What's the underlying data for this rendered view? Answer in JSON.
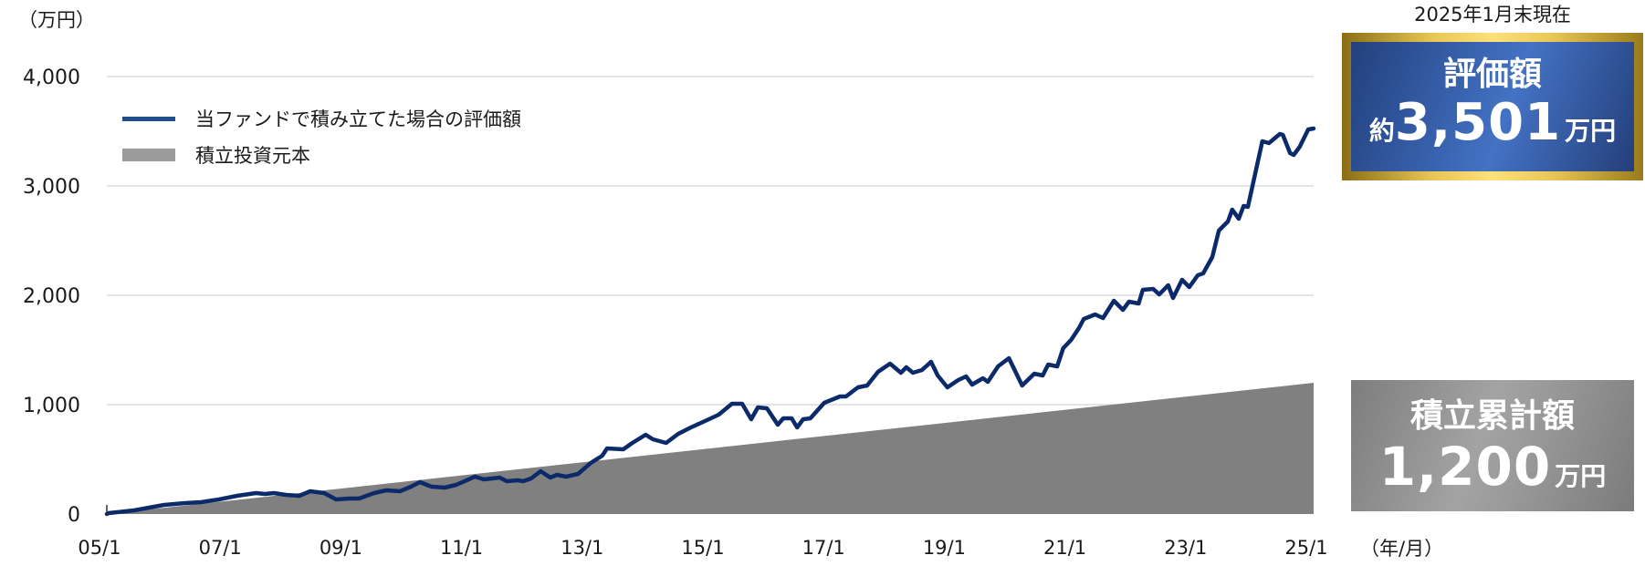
{
  "header": {
    "y_unit": "（万円）",
    "x_unit": "（年/月）"
  },
  "legend": {
    "items": [
      {
        "label": "当ファンドで積み立てた場合の評価額",
        "type": "line",
        "color": "#1f4e8c"
      },
      {
        "label": "積立投資元本",
        "type": "area",
        "color": "#9b9b9b"
      }
    ]
  },
  "summary": {
    "as_of": "2025年1月末現在",
    "evaluation": {
      "title": "評価額",
      "prefix": "約",
      "value": "3,501",
      "suffix": "万円"
    },
    "total_contribution": {
      "title": "積立累計額",
      "value": "1,200",
      "suffix": "万円"
    }
  },
  "colors": {
    "line": "#0b2a6a",
    "area": "#808080",
    "grid": "#dcdcdc",
    "eval_box": "#3d69b8",
    "gold_border": "#e8c656",
    "total_box": "#9a9a9a"
  },
  "chart_data": {
    "type": "line",
    "title": "",
    "xlabel": "（年/月）",
    "ylabel": "（万円）",
    "ylim": [
      0,
      4000
    ],
    "xlim": [
      2005,
      2025
    ],
    "grid": true,
    "legend_position": "upper-left",
    "y_ticks": [
      0,
      1000,
      2000,
      3000,
      4000
    ],
    "y_tick_labels": [
      "0",
      "1,000",
      "2,000",
      "3,000",
      "4,000"
    ],
    "x_ticks": [
      2005,
      2007,
      2009,
      2011,
      2013,
      2015,
      2017,
      2019,
      2021,
      2023,
      2025
    ],
    "x_tick_labels": [
      "05/1",
      "07/1",
      "09/1",
      "11/1",
      "13/1",
      "15/1",
      "17/1",
      "19/1",
      "21/1",
      "23/1",
      "25/1"
    ],
    "series": [
      {
        "name": "当ファンドで積み立てた場合の評価額",
        "type": "line",
        "points": [
          [
            2005.0,
            0
          ],
          [
            2005.03,
            8
          ],
          [
            2005.45,
            33
          ],
          [
            2005.95,
            83
          ],
          [
            2006.3,
            100
          ],
          [
            2006.56,
            108
          ],
          [
            2006.86,
            133
          ],
          [
            2007.16,
            167
          ],
          [
            2007.47,
            192
          ],
          [
            2007.62,
            183
          ],
          [
            2007.77,
            192
          ],
          [
            2007.97,
            175
          ],
          [
            2008.19,
            167
          ],
          [
            2008.37,
            208
          ],
          [
            2008.6,
            192
          ],
          [
            2008.8,
            133
          ],
          [
            2009.02,
            142
          ],
          [
            2009.18,
            142
          ],
          [
            2009.43,
            192
          ],
          [
            2009.63,
            217
          ],
          [
            2009.86,
            208
          ],
          [
            2010.04,
            250
          ],
          [
            2010.19,
            292
          ],
          [
            2010.34,
            258
          ],
          [
            2010.39,
            250
          ],
          [
            2010.6,
            242
          ],
          [
            2010.79,
            267
          ],
          [
            2011.1,
            342
          ],
          [
            2011.25,
            317
          ],
          [
            2011.51,
            333
          ],
          [
            2011.63,
            300
          ],
          [
            2011.81,
            308
          ],
          [
            2011.9,
            300
          ],
          [
            2012.03,
            325
          ],
          [
            2012.19,
            392
          ],
          [
            2012.35,
            333
          ],
          [
            2012.46,
            358
          ],
          [
            2012.61,
            342
          ],
          [
            2012.81,
            367
          ],
          [
            2013.02,
            467
          ],
          [
            2013.21,
            533
          ],
          [
            2013.29,
            600
          ],
          [
            2013.56,
            592
          ],
          [
            2013.71,
            650
          ],
          [
            2013.93,
            725
          ],
          [
            2014.05,
            683
          ],
          [
            2014.27,
            650
          ],
          [
            2014.47,
            733
          ],
          [
            2014.68,
            792
          ],
          [
            2014.88,
            842
          ],
          [
            2015.14,
            908
          ],
          [
            2015.36,
            1008
          ],
          [
            2015.53,
            1008
          ],
          [
            2015.68,
            867
          ],
          [
            2015.79,
            975
          ],
          [
            2015.94,
            967
          ],
          [
            2016.12,
            817
          ],
          [
            2016.21,
            875
          ],
          [
            2016.35,
            875
          ],
          [
            2016.44,
            792
          ],
          [
            2016.54,
            867
          ],
          [
            2016.66,
            875
          ],
          [
            2016.89,
            1017
          ],
          [
            2017.15,
            1075
          ],
          [
            2017.25,
            1075
          ],
          [
            2017.45,
            1158
          ],
          [
            2017.6,
            1175
          ],
          [
            2017.78,
            1300
          ],
          [
            2017.98,
            1375
          ],
          [
            2018.16,
            1292
          ],
          [
            2018.25,
            1342
          ],
          [
            2018.36,
            1292
          ],
          [
            2018.51,
            1317
          ],
          [
            2018.66,
            1392
          ],
          [
            2018.77,
            1267
          ],
          [
            2018.93,
            1158
          ],
          [
            2019.11,
            1225
          ],
          [
            2019.24,
            1258
          ],
          [
            2019.34,
            1183
          ],
          [
            2019.52,
            1242
          ],
          [
            2019.6,
            1208
          ],
          [
            2019.77,
            1350
          ],
          [
            2019.95,
            1425
          ],
          [
            2020.17,
            1175
          ],
          [
            2020.37,
            1283
          ],
          [
            2020.51,
            1267
          ],
          [
            2020.6,
            1367
          ],
          [
            2020.75,
            1350
          ],
          [
            2020.85,
            1517
          ],
          [
            2020.98,
            1592
          ],
          [
            2021.11,
            1700
          ],
          [
            2021.19,
            1783
          ],
          [
            2021.38,
            1825
          ],
          [
            2021.51,
            1792
          ],
          [
            2021.69,
            1950
          ],
          [
            2021.84,
            1867
          ],
          [
            2021.94,
            1942
          ],
          [
            2022.1,
            1925
          ],
          [
            2022.17,
            2050
          ],
          [
            2022.34,
            2058
          ],
          [
            2022.44,
            2008
          ],
          [
            2022.59,
            2092
          ],
          [
            2022.67,
            1975
          ],
          [
            2022.82,
            2142
          ],
          [
            2022.94,
            2075
          ],
          [
            2023.08,
            2183
          ],
          [
            2023.17,
            2200
          ],
          [
            2023.32,
            2350
          ],
          [
            2023.43,
            2592
          ],
          [
            2023.58,
            2675
          ],
          [
            2023.65,
            2783
          ],
          [
            2023.76,
            2700
          ],
          [
            2023.84,
            2817
          ],
          [
            2023.91,
            2808
          ],
          [
            2024.15,
            3408
          ],
          [
            2024.26,
            3392
          ],
          [
            2024.44,
            3475
          ],
          [
            2024.49,
            3467
          ],
          [
            2024.61,
            3300
          ],
          [
            2024.67,
            3283
          ],
          [
            2024.77,
            3358
          ],
          [
            2024.91,
            3517
          ],
          [
            2025.0,
            3525
          ]
        ],
        "final_value": 3501
      },
      {
        "name": "積立投資元本",
        "type": "area",
        "points": [
          [
            2005.0,
            0
          ],
          [
            2025.0,
            1200
          ]
        ],
        "final_value": 1200
      }
    ]
  }
}
